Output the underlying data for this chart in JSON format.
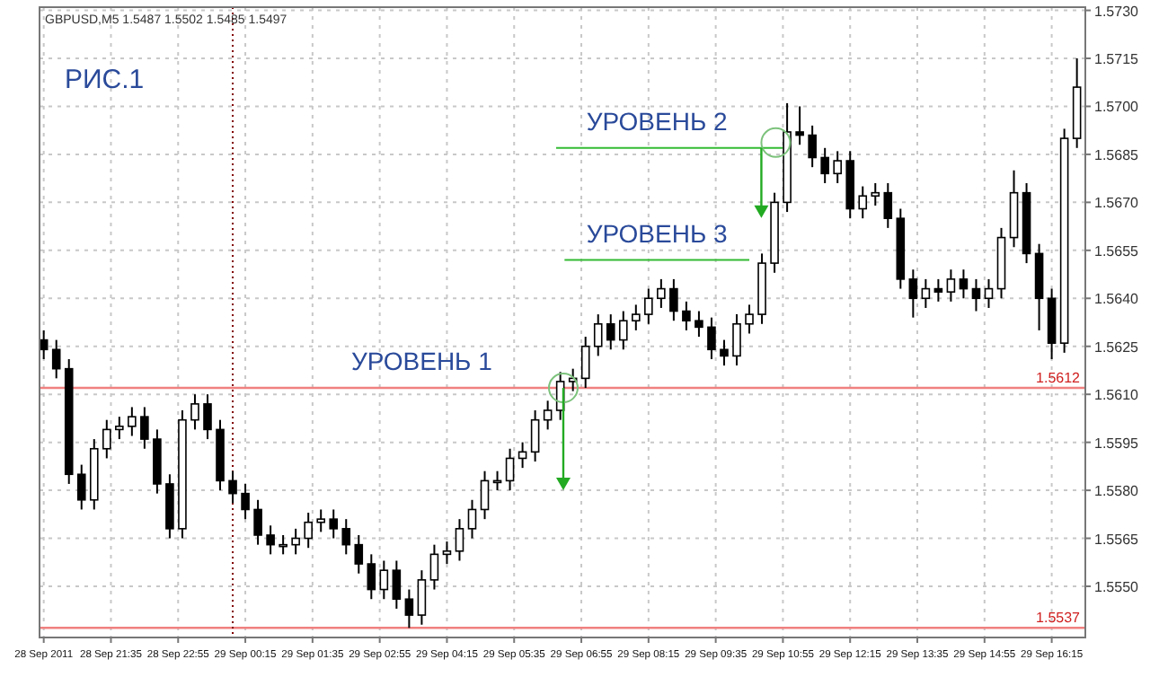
{
  "chart_data": {
    "type": "candlestick",
    "title": "GBPUSD,M5  1.5487 1.5502 1.5485 1.5497",
    "annotations": [
      "РИС.1",
      {
        "text": "УРОВЕНЬ 1",
        "x": "2011-09-29T03:45",
        "y": 1.5612
      },
      {
        "text": "УРОВЕНЬ 2",
        "x": "2011-09-29T08:25",
        "y": 1.5687
      },
      {
        "text": "УРОВЕНЬ 3",
        "x": "2011-09-29T08:25",
        "y": 1.5652
      }
    ],
    "x": [
      "2011-09-28T20:15",
      "2011-09-28T20:30",
      "2011-09-28T20:45",
      "2011-09-28T21:00",
      "2011-09-28T21:15",
      "2011-09-28T21:30",
      "2011-09-28T21:45",
      "2011-09-28T22:00",
      "2011-09-28T22:15",
      "2011-09-28T22:30",
      "2011-09-28T22:45",
      "2011-09-28T23:00",
      "2011-09-28T23:15",
      "2011-09-28T23:30",
      "2011-09-28T23:45",
      "2011-09-29T00:00",
      "2011-09-29T00:15",
      "2011-09-29T00:30",
      "2011-09-29T00:45",
      "2011-09-29T01:00",
      "2011-09-29T01:15",
      "2011-09-29T01:30",
      "2011-09-29T01:45",
      "2011-09-29T02:00",
      "2011-09-29T02:15",
      "2011-09-29T02:30",
      "2011-09-29T02:45",
      "2011-09-29T03:00",
      "2011-09-29T03:15",
      "2011-09-29T03:30",
      "2011-09-29T03:45",
      "2011-09-29T04:00",
      "2011-09-29T04:15",
      "2011-09-29T04:30",
      "2011-09-29T04:45",
      "2011-09-29T05:00",
      "2011-09-29T05:15",
      "2011-09-29T05:30",
      "2011-09-29T05:45",
      "2011-09-29T06:00",
      "2011-09-29T06:15",
      "2011-09-29T06:30",
      "2011-09-29T06:45",
      "2011-09-29T07:00",
      "2011-09-29T07:15",
      "2011-09-29T07:30",
      "2011-09-29T07:45",
      "2011-09-29T08:00",
      "2011-09-29T08:15",
      "2011-09-29T08:30",
      "2011-09-29T08:45",
      "2011-09-29T09:00",
      "2011-09-29T09:15",
      "2011-09-29T09:30",
      "2011-09-29T09:45",
      "2011-09-29T10:00",
      "2011-09-29T10:15",
      "2011-09-29T10:30",
      "2011-09-29T10:45",
      "2011-09-29T11:00",
      "2011-09-29T11:15",
      "2011-09-29T11:30",
      "2011-09-29T11:45",
      "2011-09-29T12:00",
      "2011-09-29T12:15",
      "2011-09-29T12:30",
      "2011-09-29T12:45",
      "2011-09-29T13:00",
      "2011-09-29T13:15",
      "2011-09-29T13:30",
      "2011-09-29T13:45",
      "2011-09-29T14:00",
      "2011-09-29T14:15",
      "2011-09-29T14:30",
      "2011-09-29T14:45",
      "2011-09-29T15:00",
      "2011-09-29T15:15",
      "2011-09-29T15:30",
      "2011-09-29T15:45",
      "2011-09-29T16:00",
      "2011-09-29T16:15",
      "2011-09-29T16:30",
      "2011-09-29T16:45"
    ],
    "ohlc": [
      [
        1.5627,
        1.563,
        1.5621,
        1.5624
      ],
      [
        1.5624,
        1.5627,
        1.5615,
        1.5618
      ],
      [
        1.5618,
        1.5621,
        1.5582,
        1.5585
      ],
      [
        1.5585,
        1.5588,
        1.5574,
        1.5577
      ],
      [
        1.5577,
        1.5596,
        1.5574,
        1.5593
      ],
      [
        1.5593,
        1.5602,
        1.559,
        1.5599
      ],
      [
        1.5599,
        1.5603,
        1.5596,
        1.56
      ],
      [
        1.56,
        1.5606,
        1.5597,
        1.5603
      ],
      [
        1.5603,
        1.5606,
        1.5593,
        1.5596
      ],
      [
        1.5596,
        1.5599,
        1.5579,
        1.5582
      ],
      [
        1.5582,
        1.5585,
        1.5565,
        1.5568
      ],
      [
        1.5568,
        1.5605,
        1.5565,
        1.5602
      ],
      [
        1.5602,
        1.561,
        1.5599,
        1.5607
      ],
      [
        1.5607,
        1.561,
        1.5596,
        1.5599
      ],
      [
        1.5599,
        1.5602,
        1.558,
        1.5583
      ],
      [
        1.5583,
        1.5586,
        1.5576,
        1.5579
      ],
      [
        1.5579,
        1.5582,
        1.5571,
        1.5574
      ],
      [
        1.5574,
        1.5577,
        1.5563,
        1.5566
      ],
      [
        1.5566,
        1.5569,
        1.556,
        1.5563
      ],
      [
        1.5563,
        1.5566,
        1.556,
        1.5563
      ],
      [
        1.5563,
        1.5568,
        1.556,
        1.5565
      ],
      [
        1.5565,
        1.5573,
        1.5562,
        1.557
      ],
      [
        1.557,
        1.5574,
        1.5567,
        1.5571
      ],
      [
        1.5571,
        1.5574,
        1.5565,
        1.5568
      ],
      [
        1.5568,
        1.5571,
        1.556,
        1.5563
      ],
      [
        1.5563,
        1.5566,
        1.5554,
        1.5557
      ],
      [
        1.5557,
        1.556,
        1.5546,
        1.5549
      ],
      [
        1.5549,
        1.5558,
        1.5546,
        1.5555
      ],
      [
        1.5555,
        1.5558,
        1.5543,
        1.5546
      ],
      [
        1.5546,
        1.5549,
        1.5537,
        1.5541
      ],
      [
        1.5541,
        1.5555,
        1.5538,
        1.5552
      ],
      [
        1.5552,
        1.5563,
        1.5549,
        1.556
      ],
      [
        1.556,
        1.5564,
        1.5557,
        1.5561
      ],
      [
        1.5561,
        1.5571,
        1.5558,
        1.5568
      ],
      [
        1.5568,
        1.5577,
        1.5565,
        1.5574
      ],
      [
        1.5574,
        1.5586,
        1.5571,
        1.5583
      ],
      [
        1.5583,
        1.5586,
        1.558,
        1.5583
      ],
      [
        1.5583,
        1.5593,
        1.558,
        1.559
      ],
      [
        1.559,
        1.5595,
        1.5587,
        1.5592
      ],
      [
        1.5592,
        1.5605,
        1.5589,
        1.5602
      ],
      [
        1.5602,
        1.5608,
        1.5599,
        1.5605
      ],
      [
        1.5605,
        1.5617,
        1.5602,
        1.5614
      ],
      [
        1.5614,
        1.5618,
        1.5611,
        1.5615
      ],
      [
        1.5615,
        1.5628,
        1.5612,
        1.5625
      ],
      [
        1.5625,
        1.5635,
        1.5622,
        1.5632
      ],
      [
        1.5632,
        1.5635,
        1.5624,
        1.5627
      ],
      [
        1.5627,
        1.5636,
        1.5624,
        1.5633
      ],
      [
        1.5633,
        1.5638,
        1.563,
        1.5635
      ],
      [
        1.5635,
        1.5643,
        1.5632,
        1.564
      ],
      [
        1.564,
        1.5646,
        1.5637,
        1.5643
      ],
      [
        1.5643,
        1.5646,
        1.5633,
        1.5636
      ],
      [
        1.5636,
        1.5639,
        1.563,
        1.5633
      ],
      [
        1.5633,
        1.5636,
        1.5628,
        1.5631
      ],
      [
        1.5631,
        1.5634,
        1.5621,
        1.5624
      ],
      [
        1.5624,
        1.5627,
        1.5619,
        1.5622
      ],
      [
        1.5622,
        1.5635,
        1.5619,
        1.5632
      ],
      [
        1.5632,
        1.5638,
        1.5629,
        1.5635
      ],
      [
        1.5635,
        1.5654,
        1.5632,
        1.5651
      ],
      [
        1.5651,
        1.5673,
        1.5648,
        1.567
      ],
      [
        1.567,
        1.5701,
        1.5667,
        1.5692
      ],
      [
        1.5692,
        1.57,
        1.5688,
        1.5691
      ],
      [
        1.5691,
        1.5694,
        1.5681,
        1.5684
      ],
      [
        1.5684,
        1.5687,
        1.5676,
        1.5679
      ],
      [
        1.5679,
        1.5686,
        1.5676,
        1.5683
      ],
      [
        1.5683,
        1.5686,
        1.5665,
        1.5668
      ],
      [
        1.5668,
        1.5675,
        1.5665,
        1.5672
      ],
      [
        1.5672,
        1.5676,
        1.5669,
        1.5673
      ],
      [
        1.5673,
        1.5676,
        1.5662,
        1.5665
      ],
      [
        1.5665,
        1.5668,
        1.5643,
        1.5646
      ],
      [
        1.5646,
        1.5649,
        1.5634,
        1.564
      ],
      [
        1.564,
        1.5646,
        1.5637,
        1.5643
      ],
      [
        1.5643,
        1.5646,
        1.5639,
        1.5642
      ],
      [
        1.5642,
        1.5649,
        1.5639,
        1.5646
      ],
      [
        1.5646,
        1.5649,
        1.564,
        1.5643
      ],
      [
        1.5643,
        1.5646,
        1.5636,
        1.564
      ],
      [
        1.564,
        1.5646,
        1.5637,
        1.5643
      ],
      [
        1.5643,
        1.5662,
        1.564,
        1.5659
      ],
      [
        1.5659,
        1.568,
        1.5656,
        1.5673
      ],
      [
        1.5673,
        1.5676,
        1.5651,
        1.5654
      ],
      [
        1.5654,
        1.5657,
        1.563,
        1.564
      ],
      [
        1.564,
        1.5643,
        1.5621,
        1.5626
      ],
      [
        1.5626,
        1.5693,
        1.5623,
        1.569
      ],
      [
        1.569,
        1.5715,
        1.5687,
        1.5706
      ]
    ],
    "series": [
      {
        "type": "line",
        "x": [
          "2011-09-29T06:25",
          "2011-09-29T10:55"
        ],
        "values": [
          1.5687,
          1.5687
        ],
        "color": "#33bb33"
      },
      {
        "type": "line",
        "x": [
          "2011-09-29T06:35",
          "2011-09-29T10:15"
        ],
        "values": [
          1.5652,
          1.5652
        ],
        "color": "#33bb33"
      }
    ],
    "xlim": [
      "2011-09-28T20:10",
      "2011-09-29T16:55"
    ],
    "xticks": [
      {
        "value": "2011-09-28T20:15",
        "label": "28 Sep 2011"
      },
      {
        "value": "2011-09-28T21:35",
        "label": "28 Sep 21:35"
      },
      {
        "value": "2011-09-28T22:55",
        "label": "28 Sep 22:55"
      },
      {
        "value": "2011-09-29T00:15",
        "label": "29 Sep 00:15"
      },
      {
        "value": "2011-09-29T01:35",
        "label": "29 Sep 01:35"
      },
      {
        "value": "2011-09-29T02:55",
        "label": "29 Sep 02:55"
      },
      {
        "value": "2011-09-29T04:15",
        "label": "29 Sep 04:15"
      },
      {
        "value": "2011-09-29T05:35",
        "label": "29 Sep 05:35"
      },
      {
        "value": "2011-09-29T06:55",
        "label": "29 Sep 06:55"
      },
      {
        "value": "2011-09-29T08:15",
        "label": "29 Sep 08:15"
      },
      {
        "value": "2011-09-29T09:35",
        "label": "29 Sep 09:35"
      },
      {
        "value": "2011-09-29T10:55",
        "label": "29 Sep 10:55"
      },
      {
        "value": "2011-09-29T12:15",
        "label": "29 Sep 12:15"
      },
      {
        "value": "2011-09-29T13:35",
        "label": "29 Sep 13:35"
      },
      {
        "value": "2011-09-29T14:55",
        "label": "29 Sep 14:55"
      },
      {
        "value": "2011-09-29T16:15",
        "label": "29 Sep 16:15"
      }
    ],
    "ylim": [
      1.5534,
      1.5731
    ],
    "yticks": [
      {
        "value": 1.555,
        "label": "1.5550"
      },
      1.5565,
      {
        "value": 1.558,
        "label": "1.5580"
      },
      1.5595,
      {
        "value": 1.561,
        "label": "1.5610"
      },
      1.5625,
      {
        "value": 1.564,
        "label": "1.5640"
      },
      1.5655,
      {
        "value": 1.567,
        "label": "1.5670"
      },
      1.5685,
      {
        "value": 1.57,
        "label": "1.5700"
      },
      1.5715,
      {
        "value": 1.573,
        "label": "1.5730"
      }
    ],
    "grid": true,
    "ref_lines": [
      {
        "axis": "y",
        "value": 1.5612,
        "label": "1.5612",
        "color": "#f08080"
      },
      {
        "axis": "y",
        "value": 1.5537,
        "label": "1.5537",
        "color": "#f08080"
      },
      {
        "axis": "x",
        "value": "2011-09-29T00:00",
        "color": "#800000",
        "line_style": "dotted"
      }
    ]
  }
}
